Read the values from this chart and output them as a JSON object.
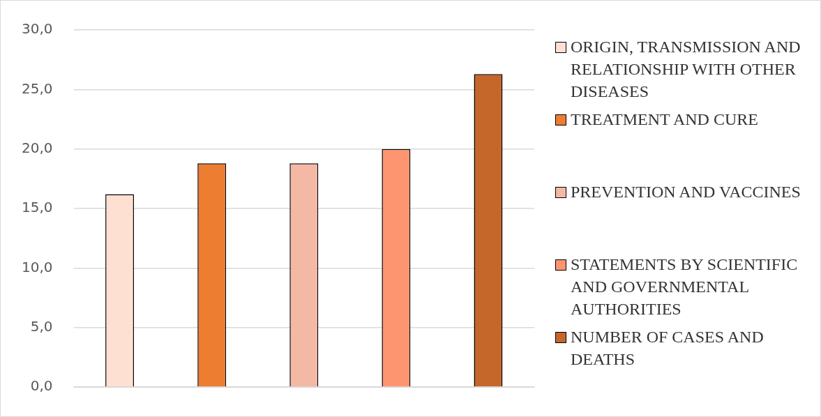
{
  "chart_data": {
    "type": "bar",
    "categories": [
      null,
      null,
      null,
      null,
      null
    ],
    "series": [
      {
        "name": "ORIGIN, TRANSMISSION AND RELATIONSHIP WITH OTHER DISEASES",
        "color": "#fde0d2",
        "values": [
          16.2,
          null,
          null,
          null,
          null
        ]
      },
      {
        "name": "TREATMENT AND CURE",
        "color": "#ed7d31",
        "values": [
          null,
          18.8,
          null,
          null,
          null
        ]
      },
      {
        "name": "PREVENTION AND VACCINES",
        "color": "#f4b9a4",
        "values": [
          null,
          null,
          18.8,
          null,
          null
        ]
      },
      {
        "name": "STATEMENTS BY SCIENTIFIC AND GOVERNMENTAL AUTHORITIES",
        "color": "#fc9570",
        "values": [
          null,
          null,
          null,
          20.0,
          null
        ]
      },
      {
        "name": "NUMBER OF CASES AND DEATHS",
        "color": "#c5672b",
        "values": [
          null,
          null,
          null,
          null,
          26.3
        ]
      }
    ],
    "ylim": [
      0,
      30
    ],
    "yticks": [
      {
        "value": 0,
        "label": "0,0"
      },
      {
        "value": 5,
        "label": "5,0"
      },
      {
        "value": 10,
        "label": "10,0"
      },
      {
        "value": 15,
        "label": "15,0"
      },
      {
        "value": 20,
        "label": "20,0"
      },
      {
        "value": 25,
        "label": "25,0"
      },
      {
        "value": 30,
        "label": "30,0"
      }
    ],
    "grid": "y",
    "legend": "right",
    "tick_labels": "y"
  }
}
